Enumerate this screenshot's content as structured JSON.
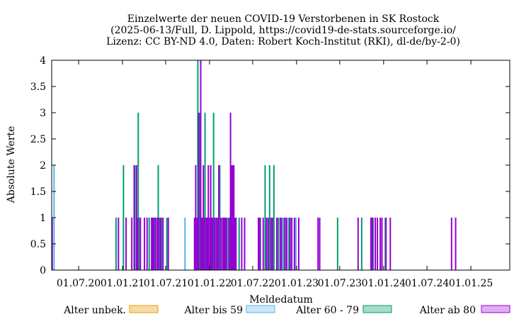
{
  "chart_data": {
    "type": "bar",
    "title": [
      "Einzelwerte der neuen COVID-19 Verstorbenen in SK Rostock",
      "(2025-06-13/Full, D. Lippold, https://covid19-de-stats.sourceforge.io/",
      "Lizenz: CC BY-ND 4.0, Daten: Robert Koch-Institut (RKI), dl-de/by-2-0)"
    ],
    "xlabel": "Meldedatum",
    "ylabel": "Absolute Werte",
    "xlim": [
      "2020-03-10",
      "2025-06-13"
    ],
    "ylim": [
      0,
      4
    ],
    "y_ticks": [
      0,
      0.5,
      1,
      1.5,
      2,
      2.5,
      3,
      3.5,
      4
    ],
    "y_tick_labels": [
      "0",
      "0.5",
      "1",
      "1.5",
      "2",
      "2.5",
      "3",
      "3.5",
      "4"
    ],
    "x_ticks": [
      "2020-07-01",
      "2021-01-01",
      "2021-07-01",
      "2022-01-01",
      "2022-07-01",
      "2023-01-01",
      "2023-07-01",
      "2024-01-01",
      "2024-07-01",
      "2025-01-01"
    ],
    "x_tick_labels": [
      "01.07.20",
      "01.01.21",
      "01.07.21",
      "01.01.22",
      "01.07.22",
      "01.01.23",
      "01.07.23",
      "01.01.24",
      "01.07.24",
      "01.01.25"
    ],
    "grid": false,
    "legend_position": "bottom",
    "series": [
      {
        "name": "Alter unbek.",
        "color": "#e69f00",
        "fill": "#f7dba6",
        "points": []
      },
      {
        "name": "Alter bis 59",
        "color": "#56b4e9",
        "fill": "#cce7f8",
        "points": [
          [
            "2020-03-20",
            2
          ],
          [
            "2021-06-07",
            1
          ],
          [
            "2021-09-20",
            1
          ],
          [
            "2021-11-15",
            2
          ],
          [
            "2021-12-02",
            1
          ],
          [
            "2022-01-24",
            1
          ],
          [
            "2022-03-22",
            1
          ],
          [
            "2022-09-06",
            1
          ],
          [
            "2022-11-06",
            1
          ],
          [
            "2022-12-29",
            1
          ]
        ]
      },
      {
        "name": "Alter 60 - 79",
        "color": "#009e73",
        "fill": "#a6dcc8",
        "points": [
          [
            "2020-12-05",
            1
          ],
          [
            "2021-01-05",
            2
          ],
          [
            "2021-02-22",
            2
          ],
          [
            "2021-03-08",
            3
          ],
          [
            "2021-03-14",
            1
          ],
          [
            "2021-04-23",
            1
          ],
          [
            "2021-05-17",
            1
          ],
          [
            "2021-05-31",
            2
          ],
          [
            "2021-06-14",
            1
          ],
          [
            "2021-07-06",
            1
          ],
          [
            "2021-11-13",
            4
          ],
          [
            "2021-11-21",
            3
          ],
          [
            "2021-12-13",
            3
          ],
          [
            "2022-01-18",
            3
          ],
          [
            "2022-02-13",
            2
          ],
          [
            "2022-03-20",
            1
          ],
          [
            "2022-05-05",
            1
          ],
          [
            "2022-08-02",
            1
          ],
          [
            "2022-08-22",
            2
          ],
          [
            "2022-09-10",
            2
          ],
          [
            "2022-09-28",
            2
          ],
          [
            "2022-10-16",
            1
          ],
          [
            "2022-11-11",
            1
          ],
          [
            "2022-11-30",
            1
          ],
          [
            "2023-06-22",
            1
          ],
          [
            "2023-10-01",
            1
          ],
          [
            "2023-11-18",
            1
          ],
          [
            "2024-01-08",
            1
          ]
        ]
      },
      {
        "name": "Alter ab 80",
        "color": "#9400d3",
        "fill": "#e0aef0",
        "points": [
          [
            "2020-03-12",
            1
          ],
          [
            "2020-12-15",
            1
          ],
          [
            "2021-01-16",
            1
          ],
          [
            "2021-02-09",
            1
          ],
          [
            "2021-02-19",
            2
          ],
          [
            "2021-03-01",
            2
          ],
          [
            "2021-03-06",
            1
          ],
          [
            "2021-03-17",
            1
          ],
          [
            "2021-04-03",
            1
          ],
          [
            "2021-04-14",
            1
          ],
          [
            "2021-05-03",
            1
          ],
          [
            "2021-05-08",
            1
          ],
          [
            "2021-05-12",
            1
          ],
          [
            "2021-05-20",
            1
          ],
          [
            "2021-05-27",
            1
          ],
          [
            "2021-06-03",
            1
          ],
          [
            "2021-06-10",
            1
          ],
          [
            "2021-06-20",
            1
          ],
          [
            "2021-07-12",
            1
          ],
          [
            "2021-10-30",
            1
          ],
          [
            "2021-11-04",
            2
          ],
          [
            "2021-11-10",
            1
          ],
          [
            "2021-11-16",
            3
          ],
          [
            "2021-11-25",
            4
          ],
          [
            "2021-12-01",
            1
          ],
          [
            "2021-12-06",
            2
          ],
          [
            "2021-12-10",
            1
          ],
          [
            "2021-12-18",
            1
          ],
          [
            "2021-12-22",
            1
          ],
          [
            "2021-12-27",
            2
          ],
          [
            "2022-01-02",
            1
          ],
          [
            "2022-01-06",
            2
          ],
          [
            "2022-01-10",
            1
          ],
          [
            "2022-01-14",
            1
          ],
          [
            "2022-01-22",
            1
          ],
          [
            "2022-01-29",
            1
          ],
          [
            "2022-02-04",
            1
          ],
          [
            "2022-02-09",
            2
          ],
          [
            "2022-02-18",
            1
          ],
          [
            "2022-02-25",
            1
          ],
          [
            "2022-03-03",
            1
          ],
          [
            "2022-03-08",
            1
          ],
          [
            "2022-03-13",
            1
          ],
          [
            "2022-03-25",
            1
          ],
          [
            "2022-03-30",
            3
          ],
          [
            "2022-04-04",
            2
          ],
          [
            "2022-04-08",
            2
          ],
          [
            "2022-04-13",
            2
          ],
          [
            "2022-04-17",
            1
          ],
          [
            "2022-04-22",
            1
          ],
          [
            "2022-05-16",
            1
          ],
          [
            "2022-05-28",
            1
          ],
          [
            "2022-07-25",
            1
          ],
          [
            "2022-07-31",
            1
          ],
          [
            "2022-08-14",
            1
          ],
          [
            "2022-08-28",
            1
          ],
          [
            "2022-09-04",
            1
          ],
          [
            "2022-09-16",
            1
          ],
          [
            "2022-09-22",
            1
          ],
          [
            "2022-10-10",
            1
          ],
          [
            "2022-10-24",
            1
          ],
          [
            "2022-10-30",
            1
          ],
          [
            "2022-11-14",
            1
          ],
          [
            "2022-11-21",
            1
          ],
          [
            "2022-12-05",
            1
          ],
          [
            "2022-12-12",
            1
          ],
          [
            "2022-12-23",
            1
          ],
          [
            "2023-01-10",
            1
          ],
          [
            "2023-04-01",
            1
          ],
          [
            "2023-04-08",
            1
          ],
          [
            "2023-09-16",
            1
          ],
          [
            "2023-11-09",
            1
          ],
          [
            "2023-11-15",
            1
          ],
          [
            "2023-11-27",
            1
          ],
          [
            "2023-12-06",
            1
          ],
          [
            "2023-12-18",
            1
          ],
          [
            "2023-12-25",
            1
          ],
          [
            "2024-01-11",
            1
          ],
          [
            "2024-01-29",
            1
          ],
          [
            "2024-10-12",
            1
          ],
          [
            "2024-10-29",
            1
          ]
        ]
      }
    ]
  }
}
